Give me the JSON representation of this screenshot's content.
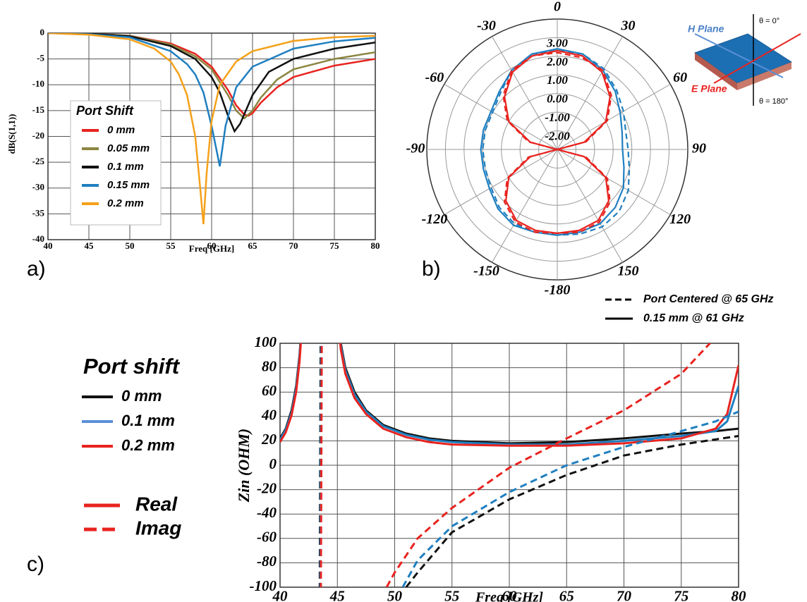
{
  "chart_data": [
    {
      "type": "line",
      "label": "a)",
      "xlabel": "Freq [GHz]",
      "ylabel": "dB(S(1,1))",
      "xlim": [
        40,
        80
      ],
      "ylim": [
        -40,
        0
      ],
      "xticks": [
        40,
        45,
        50,
        55,
        60,
        65,
        70,
        75,
        80
      ],
      "yticks": [
        0,
        -5,
        -10,
        -15,
        -20,
        -25,
        -30,
        -35,
        -40
      ],
      "grid": true,
      "legend_title": "Port Shift",
      "series": [
        {
          "name": "0 mm",
          "color": "#e8231f",
          "x": [
            40,
            45,
            50,
            55,
            58,
            60,
            62,
            63,
            64,
            64.5,
            65,
            66,
            68,
            70,
            75,
            80
          ],
          "values": [
            0,
            -0.1,
            -0.5,
            -2,
            -4,
            -6.5,
            -11,
            -14,
            -15.8,
            -16,
            -15.5,
            -13.5,
            -10.5,
            -8.5,
            -6.3,
            -5
          ]
        },
        {
          "name": "0.05 mm",
          "color": "#8b8540",
          "x": [
            40,
            45,
            50,
            55,
            58,
            60,
            62,
            63,
            64,
            65,
            66,
            68,
            70,
            75,
            80
          ],
          "values": [
            0,
            -0.1,
            -0.5,
            -2.2,
            -4.5,
            -7,
            -12,
            -15,
            -16.5,
            -15,
            -12.5,
            -9,
            -7,
            -5,
            -3.7
          ]
        },
        {
          "name": "0.1 mm",
          "color": "#111111",
          "x": [
            40,
            45,
            50,
            55,
            58,
            60,
            61,
            62,
            62.8,
            63.5,
            65,
            67,
            70,
            75,
            80
          ],
          "values": [
            0,
            -0.1,
            -0.6,
            -2.5,
            -5,
            -8.5,
            -11.5,
            -16,
            -19,
            -17.5,
            -12,
            -7.5,
            -5,
            -3,
            -1.8
          ]
        },
        {
          "name": "0.15 mm",
          "color": "#1f7fc0",
          "x": [
            40,
            45,
            50,
            55,
            57,
            58,
            59,
            60,
            61,
            61.7,
            63,
            65,
            70,
            75,
            80
          ],
          "values": [
            0,
            -0.2,
            -0.8,
            -3.5,
            -6,
            -8,
            -11.5,
            -18,
            -25.8,
            -18,
            -10.5,
            -6.5,
            -3,
            -1.6,
            -0.9
          ]
        },
        {
          "name": "0.2 mm",
          "color": "#f5a11a",
          "x": [
            40,
            45,
            50,
            53,
            55,
            56,
            57,
            58,
            58.6,
            59,
            59.4,
            60,
            61,
            63,
            65,
            70,
            75,
            80
          ],
          "values": [
            0,
            -0.3,
            -1.2,
            -3,
            -5.5,
            -8,
            -12,
            -20,
            -30,
            -37,
            -27,
            -17,
            -10,
            -5.5,
            -3.5,
            -1.5,
            -0.8,
            -0.5
          ]
        }
      ]
    },
    {
      "type": "polar",
      "label": "b)",
      "rlim": [
        -3,
        4
      ],
      "rticks": [
        {
          "value": 3,
          "label": "3.00"
        },
        {
          "value": 2,
          "label": "2.00"
        },
        {
          "value": 1,
          "label": "1.00"
        },
        {
          "value": 0,
          "label": "0.00"
        },
        {
          "value": -1,
          "label": "-1.00"
        },
        {
          "value": -2,
          "label": "-2.00"
        }
      ],
      "thetaticks": [
        0,
        30,
        60,
        90,
        120,
        150,
        -180,
        -150,
        -120,
        -90,
        -60,
        -30
      ],
      "theta": [
        -180,
        -165,
        -150,
        -135,
        -120,
        -105,
        -90,
        -75,
        -60,
        -45,
        -30,
        -15,
        0,
        15,
        30,
        45,
        60,
        75,
        90,
        105,
        120,
        135,
        150,
        165
      ],
      "series": [
        {
          "color": "#1f7fc0",
          "dash": true,
          "values": [
            1.6,
            1.6,
            1.6,
            1.4,
            1.1,
            1.0,
            1.0,
            1.0,
            1.0,
            1.3,
            1.9,
            2.3,
            2.3,
            2.3,
            2.0,
            1.5,
            1.1,
            0.8,
            0.8,
            1.0,
            1.4,
            1.7,
            1.8,
            1.7
          ]
        },
        {
          "color": "#1f7fc0",
          "dash": false,
          "values": [
            1.6,
            1.6,
            1.7,
            1.5,
            1.2,
            1.1,
            1.1,
            1.1,
            1.1,
            1.4,
            1.9,
            2.3,
            2.4,
            2.3,
            1.9,
            1.4,
            0.9,
            0.6,
            0.5,
            0.7,
            1.1,
            1.4,
            1.6,
            1.6
          ]
        },
        {
          "color": "#e8231f",
          "dash": true,
          "values": [
            1.5,
            1.6,
            1.5,
            1.0,
            0.1,
            -1.4,
            -3,
            -1.4,
            0.1,
            1.1,
            1.9,
            2.2,
            2.2,
            2.1,
            1.9,
            1.1,
            0.1,
            -1.4,
            -3,
            -1.4,
            0.1,
            1.0,
            1.5,
            1.6
          ]
        },
        {
          "color": "#e8231f",
          "dash": false,
          "values": [
            1.5,
            1.5,
            1.4,
            0.9,
            0.0,
            -1.5,
            -3,
            -1.5,
            0.0,
            1.0,
            1.8,
            2.2,
            2.3,
            2.2,
            1.8,
            1.0,
            0.0,
            -1.5,
            -3,
            -1.5,
            0.0,
            0.9,
            1.4,
            1.5
          ]
        }
      ],
      "legend": [
        {
          "label": "Port Centered @ 65 GHz",
          "dash": true
        },
        {
          "label": "0.15 mm @ 61 GHz",
          "dash": false
        }
      ],
      "annotations": [
        "H Plane",
        "E Plane",
        "θ = 0°",
        "θ = 180°"
      ]
    },
    {
      "type": "line",
      "label": "c)",
      "xlabel": "Freq [GHz]",
      "ylabel": "Zin (OHM)",
      "xlim": [
        40,
        80
      ],
      "ylim": [
        -100,
        100
      ],
      "xticks": [
        40,
        45,
        50,
        55,
        60,
        65,
        70,
        75,
        80
      ],
      "yticks": [
        100,
        80,
        60,
        40,
        20,
        0,
        -20,
        -40,
        -60,
        -80,
        -100
      ],
      "grid": true,
      "legend_title": "Port shift",
      "legend": [
        {
          "name": "0 mm",
          "color": "#111111"
        },
        {
          "name": "0.1 mm",
          "color": "#5b8fd6"
        },
        {
          "name": "0.2 mm",
          "color": "#e8231f"
        }
      ],
      "linestyle_legend": [
        {
          "name": "Real",
          "dash": false,
          "color": "#e8231f"
        },
        {
          "name": "Imag",
          "dash": true,
          "color": "#e8231f"
        }
      ],
      "series": [
        {
          "color": "#111111",
          "dash": false,
          "x": [
            40,
            40.5,
            41,
            41.4,
            41.7,
            42.0,
            43.5,
            45.0,
            45.3,
            45.7,
            46.5,
            47.5,
            49,
            51,
            53,
            55,
            60,
            65,
            70,
            75,
            78,
            79,
            80
          ],
          "values": [
            22,
            30,
            45,
            65,
            90,
            130,
            null,
            130,
            100,
            80,
            60,
            45,
            33,
            26,
            22,
            20,
            18,
            19,
            22,
            26,
            28,
            29,
            30
          ]
        },
        {
          "color": "#1f7fc0",
          "dash": false,
          "x": [
            40,
            40.5,
            41,
            41.4,
            41.7,
            42.0,
            43.5,
            45.0,
            45.3,
            45.7,
            46.5,
            47.5,
            49,
            51,
            53,
            55,
            60,
            65,
            70,
            75,
            78,
            79,
            80
          ],
          "values": [
            21,
            29,
            43,
            63,
            88,
            128,
            null,
            128,
            98,
            78,
            58,
            44,
            32,
            25,
            21,
            19,
            17,
            17,
            20,
            24,
            28,
            36,
            65
          ]
        },
        {
          "color": "#e8231f",
          "dash": false,
          "x": [
            40,
            40.5,
            41,
            41.4,
            41.7,
            42.0,
            43.5,
            45.0,
            45.3,
            45.7,
            46.5,
            47.5,
            49,
            51,
            53,
            55,
            60,
            65,
            70,
            75,
            78,
            79,
            80
          ],
          "values": [
            19,
            27,
            41,
            60,
            85,
            125,
            null,
            125,
            95,
            75,
            55,
            42,
            30,
            23,
            19,
            17,
            16,
            16,
            18,
            22,
            30,
            42,
            82
          ]
        },
        {
          "color": "#111111",
          "dash": true,
          "x": [
            43.45,
            43.55,
            44,
            51,
            52,
            55,
            60,
            65,
            70,
            75,
            80
          ],
          "values": [
            -130,
            130,
            null,
            -100,
            -88,
            -55,
            -28,
            -8,
            8,
            17,
            24
          ]
        },
        {
          "color": "#1f7fc0",
          "dash": true,
          "x": [
            43.5,
            43.6,
            44,
            50.7,
            52,
            55,
            60,
            65,
            70,
            75,
            78,
            80
          ],
          "values": [
            -130,
            130,
            null,
            -100,
            -78,
            -50,
            -22,
            0,
            15,
            28,
            36,
            44
          ]
        },
        {
          "color": "#e8231f",
          "dash": true,
          "x": [
            43.55,
            43.65,
            44,
            49.3,
            50,
            52,
            55,
            60,
            65,
            70,
            75,
            77.5,
            79
          ],
          "values": [
            -130,
            130,
            null,
            -100,
            -88,
            -60,
            -35,
            -2,
            22,
            45,
            75,
            100,
            125
          ]
        }
      ]
    }
  ]
}
